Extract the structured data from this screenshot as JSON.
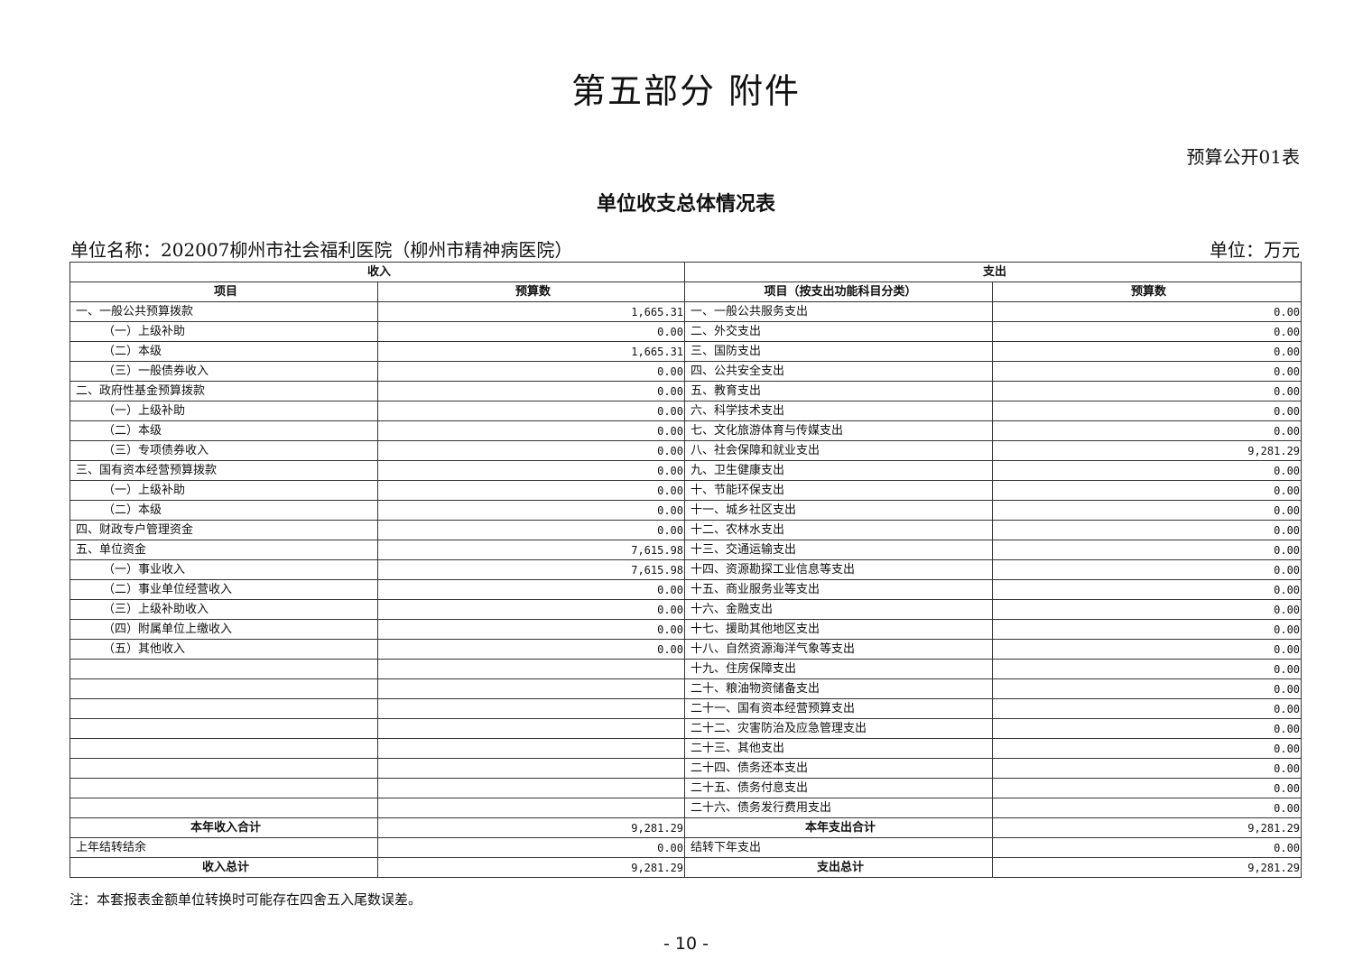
{
  "title": "第五部分  附件",
  "table_no": "预算公开01表",
  "subtitle": "单位收支总体情况表",
  "unit_name": "单位名称：202007柳州市社会福利医院（柳州市精神病医院）",
  "unit": "单位：万元",
  "headers": {
    "income": "收入",
    "expense": "支出",
    "income_item": "项目",
    "income_budget": "预算数",
    "expense_item": "项目（按支出功能科目分类）",
    "expense_budget": "预算数"
  },
  "rows": [
    {
      "in_label": "一、一般公共预算拨款",
      "in_value": "1,665.31",
      "out_label": "一、一般公共服务支出",
      "out_value": "0.00"
    },
    {
      "in_label": "（一）上级补助",
      "in_value": "0.00",
      "out_label": "二、外交支出",
      "out_value": "0.00"
    },
    {
      "in_label": "（二）本级",
      "in_value": "1,665.31",
      "out_label": "三、国防支出",
      "out_value": "0.00"
    },
    {
      "in_label": "（三）一般债券收入",
      "in_value": "0.00",
      "out_label": "四、公共安全支出",
      "out_value": "0.00"
    },
    {
      "in_label": "二、政府性基金预算拨款",
      "in_value": "0.00",
      "out_label": "五、教育支出",
      "out_value": "0.00"
    },
    {
      "in_label": "（一）上级补助",
      "in_value": "0.00",
      "out_label": "六、科学技术支出",
      "out_value": "0.00"
    },
    {
      "in_label": "（二）本级",
      "in_value": "0.00",
      "out_label": "七、文化旅游体育与传媒支出",
      "out_value": "0.00"
    },
    {
      "in_label": "（三）专项债券收入",
      "in_value": "0.00",
      "out_label": "八、社会保障和就业支出",
      "out_value": "9,281.29"
    },
    {
      "in_label": "三、国有资本经营预算拨款",
      "in_value": "0.00",
      "out_label": "九、卫生健康支出",
      "out_value": "0.00"
    },
    {
      "in_label": "（一）上级补助",
      "in_value": "0.00",
      "out_label": "十、节能环保支出",
      "out_value": "0.00"
    },
    {
      "in_label": "（二）本级",
      "in_value": "0.00",
      "out_label": "十一、城乡社区支出",
      "out_value": "0.00"
    },
    {
      "in_label": "四、财政专户管理资金",
      "in_value": "0.00",
      "out_label": "十二、农林水支出",
      "out_value": "0.00"
    },
    {
      "in_label": "五、单位资金",
      "in_value": "7,615.98",
      "out_label": "十三、交通运输支出",
      "out_value": "0.00"
    },
    {
      "in_label": "（一）事业收入",
      "in_value": "7,615.98",
      "out_label": "十四、资源勘探工业信息等支出",
      "out_value": "0.00"
    },
    {
      "in_label": "（二）事业单位经营收入",
      "in_value": "0.00",
      "out_label": "十五、商业服务业等支出",
      "out_value": "0.00"
    },
    {
      "in_label": "（三）上级补助收入",
      "in_value": "0.00",
      "out_label": "十六、金融支出",
      "out_value": "0.00"
    },
    {
      "in_label": "（四）附属单位上缴收入",
      "in_value": "0.00",
      "out_label": "十七、援助其他地区支出",
      "out_value": "0.00"
    },
    {
      "in_label": "（五）其他收入",
      "in_value": "0.00",
      "out_label": "十八、自然资源海洋气象等支出",
      "out_value": "0.00"
    },
    {
      "in_label": "",
      "in_value": "",
      "out_label": "十九、住房保障支出",
      "out_value": "0.00"
    },
    {
      "in_label": "",
      "in_value": "",
      "out_label": "二十、粮油物资储备支出",
      "out_value": "0.00"
    },
    {
      "in_label": "",
      "in_value": "",
      "out_label": "二十一、国有资本经营预算支出",
      "out_value": "0.00"
    },
    {
      "in_label": "",
      "in_value": "",
      "out_label": "二十二、灾害防治及应急管理支出",
      "out_value": "0.00"
    },
    {
      "in_label": "",
      "in_value": "",
      "out_label": "二十三、其他支出",
      "out_value": "0.00"
    },
    {
      "in_label": "",
      "in_value": "",
      "out_label": "二十四、债务还本支出",
      "out_value": "0.00"
    },
    {
      "in_label": "",
      "in_value": "",
      "out_label": "二十五、债务付息支出",
      "out_value": "0.00"
    },
    {
      "in_label": "",
      "in_value": "",
      "out_label": "二十六、债务发行费用支出",
      "out_value": "0.00"
    }
  ],
  "summary": [
    {
      "in_label": "本年收入合计",
      "in_value": "9,281.29",
      "out_label": "本年支出合计",
      "out_value": "9,281.29",
      "bold": true
    },
    {
      "in_label": "上年结转结余",
      "in_value": "0.00",
      "out_label": "结转下年支出",
      "out_value": "0.00",
      "bold": false
    },
    {
      "in_label": "收入总计",
      "in_value": "9,281.29",
      "out_label": "支出总计",
      "out_value": "9,281.29",
      "bold": true
    }
  ],
  "note": "注：本套报表金额单位转换时可能存在四舍五入尾数误差。",
  "page_number": "- 10 -"
}
